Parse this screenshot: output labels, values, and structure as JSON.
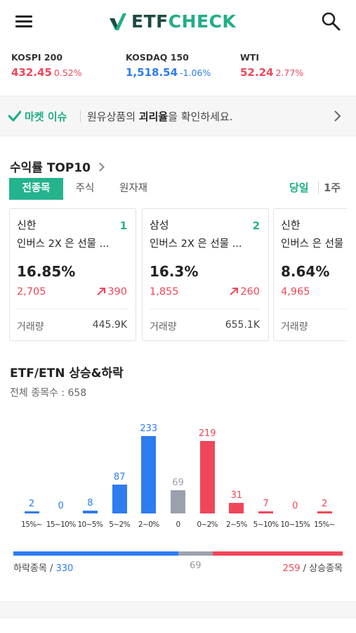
{
  "header": {
    "logo_etf": "ETF",
    "logo_check": "CHECK"
  },
  "indices": [
    {
      "name": "KOSPI 200",
      "value": "432.45",
      "change": "0.52%",
      "direction": "up"
    },
    {
      "name": "KOSDAQ 150",
      "value": "1,518.54",
      "change": "-1.06%",
      "direction": "down"
    },
    {
      "name": "WTI",
      "value": "52.24",
      "change": "2.77%",
      "direction": "up"
    }
  ],
  "market_issue": {
    "title": "마켓 이슈",
    "text_before": "원유상품의 ",
    "text_bold": "괴리율",
    "text_after": "을 확인하세요."
  },
  "top10": {
    "title": "수익률 TOP10",
    "tabs": [
      "전종목",
      "주식",
      "원자재"
    ],
    "active_tab": 0,
    "periods": [
      "당일",
      "1주"
    ],
    "active_period": 0,
    "volume_label": "거래량",
    "cards": [
      {
        "issuer": "신한",
        "rank": "1",
        "name": "인버스 2X 은 선물 ...",
        "return": "16.85%",
        "price": "2,705",
        "change": "390",
        "volume": "445.9K"
      },
      {
        "issuer": "삼성",
        "rank": "2",
        "name": "인버스 2X 은 선물 ...",
        "return": "16.3%",
        "price": "1,855",
        "change": "260",
        "volume": "655.1K"
      },
      {
        "issuer": "신한",
        "rank": "",
        "name": "인버스 은 선물",
        "return": "8.64%",
        "price": "4,965",
        "change": "",
        "volume": ""
      }
    ]
  },
  "updown": {
    "title": "ETF/ETN 상승&하락",
    "total_text": "전체 종목수 : 658",
    "falling_label": "하락종목 / ",
    "falling_count": "330",
    "flat_count": "69",
    "rising_count": "259",
    "rising_label": " / 상승종목"
  },
  "colors": {
    "accent": "#1fae86",
    "up": "#f0465a",
    "down": "#2d7cf0",
    "flat": "#9aa0ad"
  },
  "chart_data": {
    "type": "bar",
    "categories": [
      "15%~",
      "15~10%",
      "10~5%",
      "5~2%",
      "2~0%",
      "0",
      "0~2%",
      "2~5%",
      "5~10%",
      "10~15%",
      "15%~"
    ],
    "values": [
      2,
      0,
      8,
      87,
      233,
      69,
      219,
      31,
      7,
      0,
      2
    ],
    "groups": [
      "down",
      "down",
      "down",
      "down",
      "down",
      "flat",
      "up",
      "up",
      "up",
      "up",
      "up"
    ],
    "xlabel": "",
    "ylabel": "",
    "ylim": [
      0,
      233
    ]
  }
}
